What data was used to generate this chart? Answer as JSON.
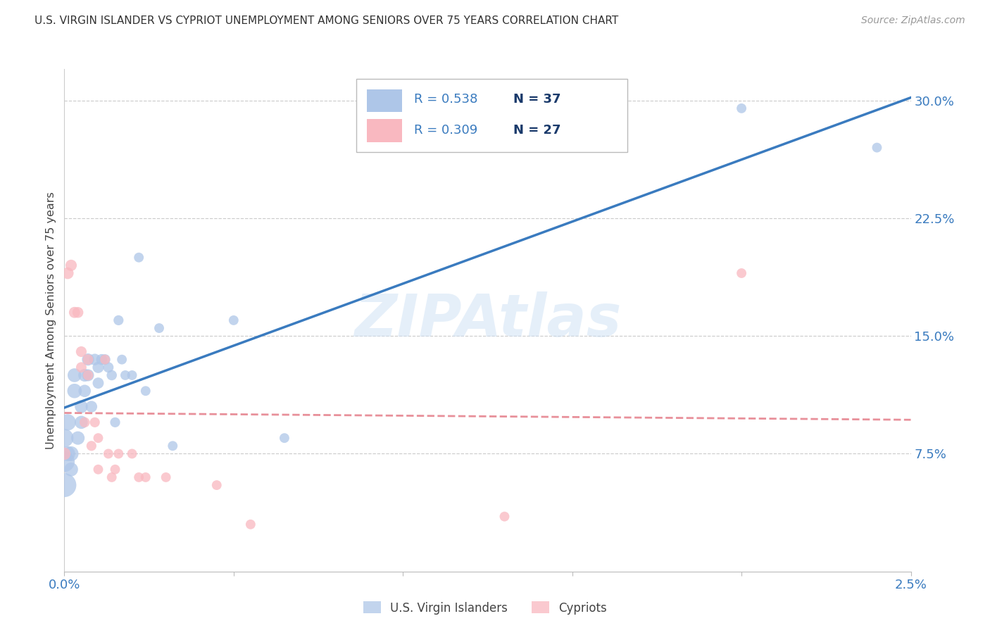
{
  "title": "U.S. VIRGIN ISLANDER VS CYPRIOT UNEMPLOYMENT AMONG SENIORS OVER 75 YEARS CORRELATION CHART",
  "source": "Source: ZipAtlas.com",
  "ylabel": "Unemployment Among Seniors over 75 years",
  "color_blue": "#aec6e8",
  "color_pink": "#f9b8c0",
  "line_color_blue": "#3a7bbf",
  "line_color_pink": "#e8909a",
  "watermark_text": "ZIPAtlas",
  "series1_label": "U.S. Virgin Islanders",
  "series2_label": "Cypriots",
  "R1": "0.538",
  "N1": "37",
  "R2": "0.309",
  "N2": "27",
  "xlim": [
    0.0,
    0.025
  ],
  "ylim": [
    0.0,
    0.32
  ],
  "x_ticks": [
    0.0,
    0.005,
    0.01,
    0.015,
    0.02,
    0.025
  ],
  "x_tick_labels": [
    "0.0%",
    "",
    "",
    "",
    "",
    "2.5%"
  ],
  "y_ticks_right": [
    0.075,
    0.15,
    0.225,
    0.3
  ],
  "y_tick_labels_right": [
    "7.5%",
    "15.0%",
    "22.5%",
    "30.0%"
  ],
  "blue_x": [
    0.0,
    0.0,
    0.0,
    0.0001,
    0.0001,
    0.0002,
    0.0002,
    0.0003,
    0.0003,
    0.0004,
    0.0005,
    0.0005,
    0.0006,
    0.0006,
    0.0007,
    0.0007,
    0.0008,
    0.0009,
    0.001,
    0.001,
    0.0011,
    0.0012,
    0.0013,
    0.0014,
    0.0015,
    0.0016,
    0.0017,
    0.0018,
    0.002,
    0.0022,
    0.0024,
    0.0028,
    0.0032,
    0.005,
    0.0065,
    0.02,
    0.024
  ],
  "blue_y": [
    0.055,
    0.07,
    0.085,
    0.095,
    0.075,
    0.075,
    0.065,
    0.115,
    0.125,
    0.085,
    0.095,
    0.105,
    0.125,
    0.115,
    0.135,
    0.125,
    0.105,
    0.135,
    0.13,
    0.12,
    0.135,
    0.135,
    0.13,
    0.125,
    0.095,
    0.16,
    0.135,
    0.125,
    0.125,
    0.2,
    0.115,
    0.155,
    0.08,
    0.16,
    0.085,
    0.295,
    0.27
  ],
  "blue_s": [
    600,
    450,
    350,
    280,
    230,
    230,
    200,
    220,
    200,
    190,
    180,
    175,
    170,
    160,
    155,
    150,
    140,
    140,
    135,
    130,
    125,
    120,
    115,
    110,
    105,
    105,
    100,
    100,
    100,
    100,
    100,
    100,
    100,
    100,
    100,
    100,
    100
  ],
  "pink_x": [
    0.0,
    0.0001,
    0.0002,
    0.0003,
    0.0004,
    0.0005,
    0.0005,
    0.0006,
    0.0007,
    0.0007,
    0.0008,
    0.0009,
    0.001,
    0.001,
    0.0012,
    0.0013,
    0.0014,
    0.0015,
    0.0016,
    0.002,
    0.0022,
    0.0024,
    0.003,
    0.0045,
    0.0055,
    0.013,
    0.02
  ],
  "pink_y": [
    0.075,
    0.19,
    0.195,
    0.165,
    0.165,
    0.14,
    0.13,
    0.095,
    0.135,
    0.125,
    0.08,
    0.095,
    0.085,
    0.065,
    0.135,
    0.075,
    0.06,
    0.065,
    0.075,
    0.075,
    0.06,
    0.06,
    0.06,
    0.055,
    0.03,
    0.035,
    0.19
  ],
  "pink_s": [
    160,
    145,
    135,
    130,
    125,
    120,
    115,
    110,
    115,
    110,
    105,
    105,
    100,
    100,
    100,
    100,
    100,
    100,
    100,
    100,
    100,
    100,
    100,
    100,
    100,
    100,
    100
  ]
}
